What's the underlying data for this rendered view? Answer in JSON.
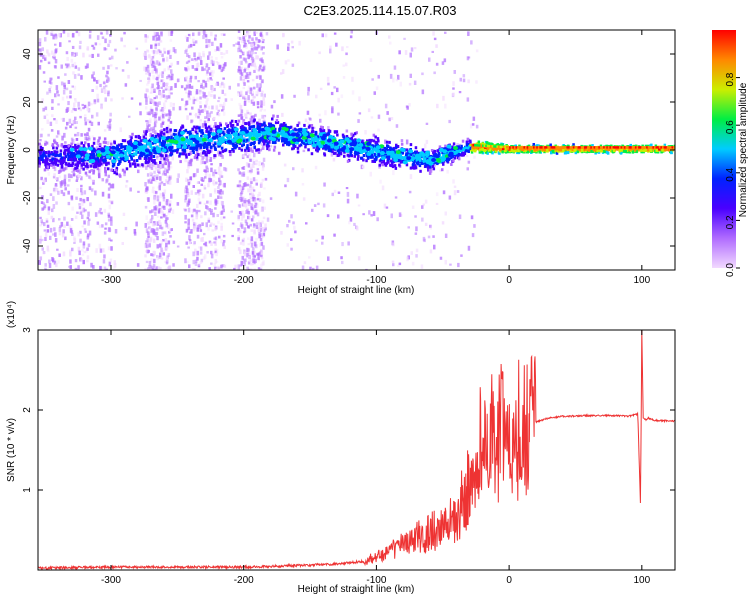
{
  "title": "C2E3.2025.114.15.07.R03",
  "colors": {
    "signal": "#ee3333",
    "band": "#2200ee",
    "scatter": "#b39bff"
  },
  "chart_data": [
    {
      "type": "heatmap",
      "xlabel": "Height of straight line (km)",
      "ylabel": "Frequency (Hz)",
      "xlim": [
        -355,
        125
      ],
      "ylim": [
        -50,
        50
      ],
      "x_ticks": [
        -300,
        -200,
        -100,
        0,
        100
      ],
      "x_tick_labels": [
        "-300",
        "-200",
        "-100",
        "0",
        "100"
      ],
      "y_ticks": [
        -40,
        -20,
        0,
        20,
        40
      ],
      "y_tick_labels": [
        "-40",
        "-20",
        "0",
        "20",
        "40"
      ],
      "colorbar": {
        "label": "Normalized spectral amplitude",
        "ticks": [
          0.0,
          0.2,
          0.4,
          0.6,
          0.8
        ],
        "tick_labels": [
          "0.0",
          "0.2",
          "0.4",
          "0.6",
          "0.8"
        ],
        "colormap": [
          "#f2d9ff",
          "#b06cff",
          "#4a00ff",
          "#0022ff",
          "#00ccff",
          "#00ee44",
          "#ccee00",
          "#ff8800",
          "#ff0000"
        ]
      },
      "band_center_hz": {
        "x": [
          -350,
          -300,
          -250,
          -200,
          -185,
          -150,
          -100,
          -60,
          -30,
          0,
          50,
          100,
          125
        ],
        "y": [
          -2,
          -2,
          4,
          6,
          8,
          5,
          0,
          -4,
          2,
          1,
          1,
          1,
          1
        ]
      },
      "band_halfwidth_hz": {
        "x": [
          -350,
          -300,
          -200,
          -150,
          -100,
          -50,
          -30,
          0,
          125
        ],
        "y": [
          8,
          10,
          10,
          8,
          8,
          6,
          4,
          2,
          2
        ]
      }
    },
    {
      "type": "line",
      "xlabel": "Height of straight line (km)",
      "ylabel": "SNR (10 * v/v)",
      "y_multiplier_label": "(x10⁴)",
      "xlim": [
        -355,
        125
      ],
      "ylim": [
        0,
        3
      ],
      "x_ticks": [
        -300,
        -200,
        -100,
        0,
        100
      ],
      "x_tick_labels": [
        "-300",
        "-200",
        "-100",
        "0",
        "100"
      ],
      "y_ticks": [
        1,
        2,
        3
      ],
      "y_tick_labels": [
        "1",
        "2",
        "3"
      ],
      "series": [
        {
          "x": [
            -355,
            -300,
            -250,
            -200,
            -160,
            -130,
            -110,
            -100,
            -80,
            -60,
            -50,
            -40,
            -35,
            -30,
            -25,
            -20,
            -15,
            -10,
            -5,
            0,
            10,
            20,
            30,
            40,
            60,
            80,
            90,
            97,
            99,
            100,
            101,
            103,
            105,
            110,
            125
          ],
          "y": [
            0.02,
            0.03,
            0.03,
            0.03,
            0.05,
            0.07,
            0.1,
            0.15,
            0.3,
            0.45,
            0.5,
            0.65,
            0.8,
            1.0,
            1.3,
            1.6,
            1.5,
            1.6,
            1.7,
            1.6,
            1.75,
            1.85,
            1.9,
            1.92,
            1.93,
            1.93,
            1.92,
            1.95,
            0.8,
            3.0,
            1.9,
            1.88,
            1.9,
            1.87,
            1.86
          ]
        }
      ]
    }
  ]
}
